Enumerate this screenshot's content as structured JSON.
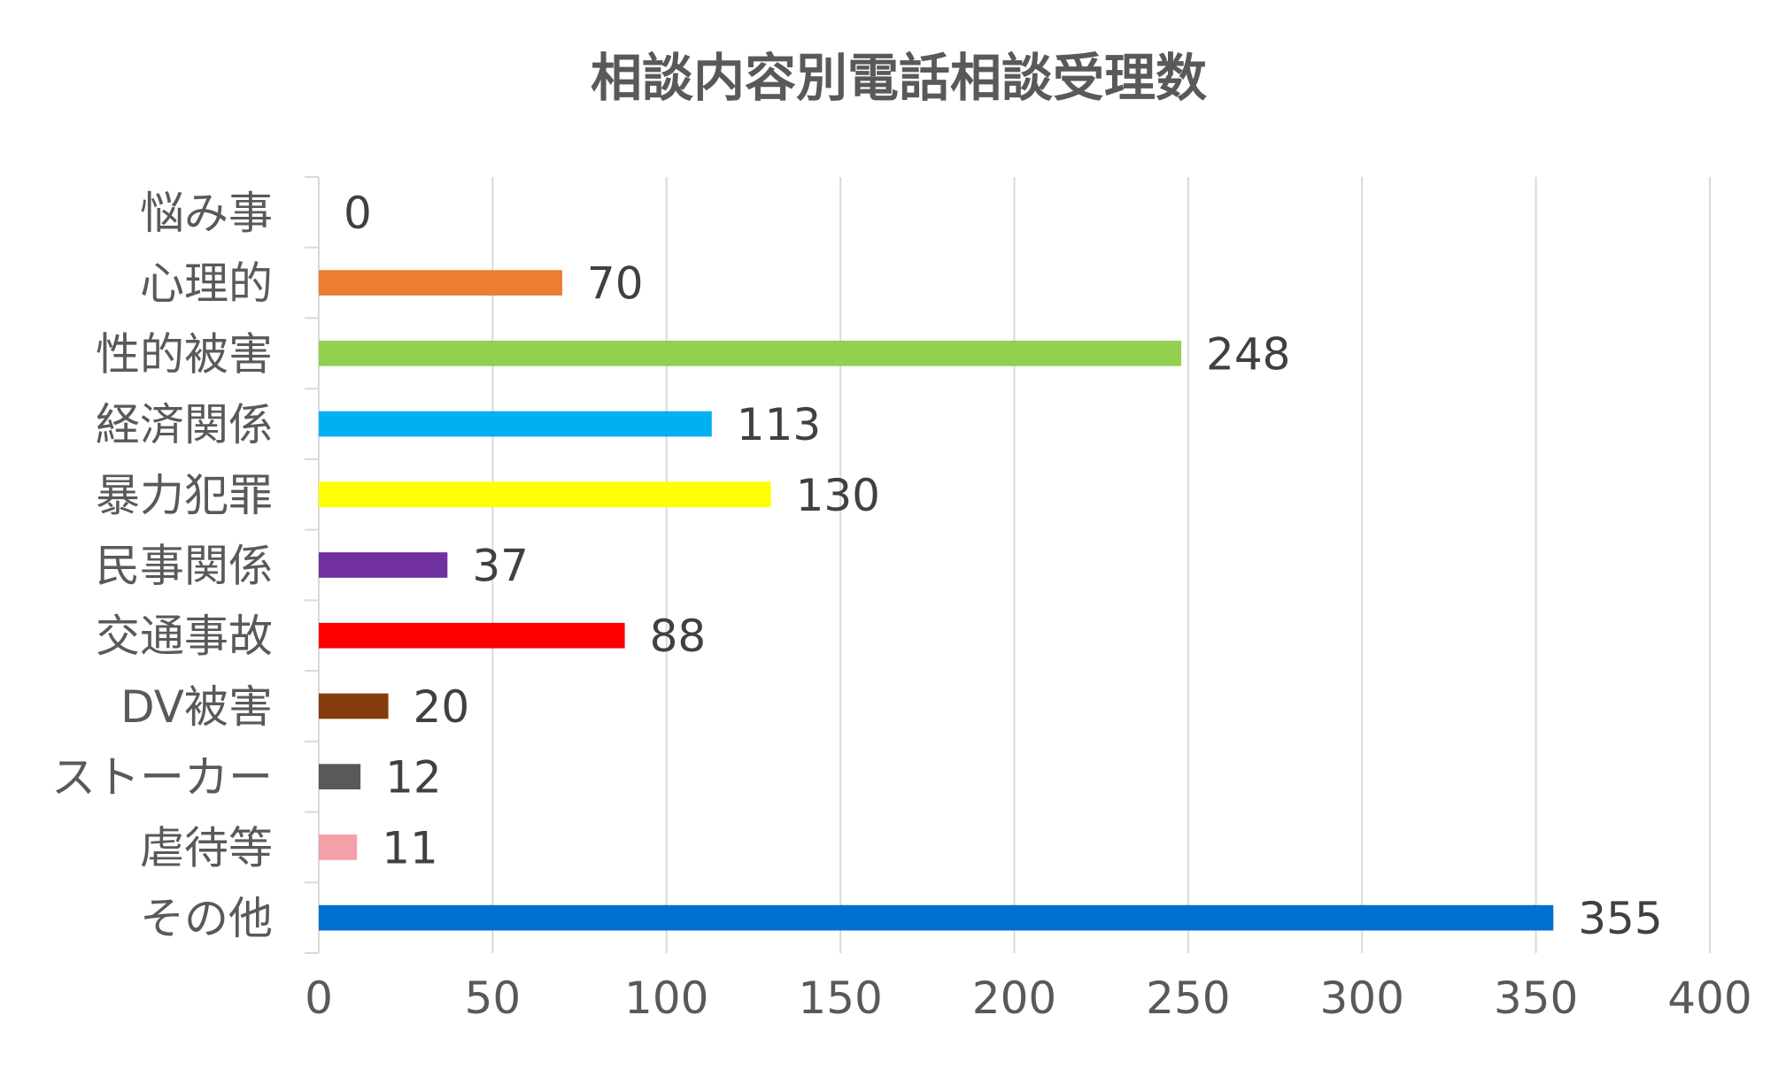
{
  "chart_data": {
    "type": "bar",
    "orientation": "horizontal",
    "title": "相談内容別電話相談受理数",
    "xlabel": "",
    "ylabel": "",
    "categories": [
      "悩み事",
      "心理的",
      "性的被害",
      "経済関係",
      "暴力犯罪",
      "民事関係",
      "交通事故",
      "DV被害",
      "ストーカー",
      "虐待等",
      "その他"
    ],
    "values": [
      0,
      70,
      248,
      113,
      130,
      37,
      88,
      20,
      12,
      11,
      355
    ],
    "colors": [
      "#4472C4",
      "#ED7D31",
      "#92D050",
      "#00B0F0",
      "#FFFF00",
      "#7030A0",
      "#FF0000",
      "#843C0C",
      "#595959",
      "#F4A0A8",
      "#0070D0"
    ],
    "xlim": [
      0,
      400
    ],
    "xticks": [
      0,
      50,
      100,
      150,
      200,
      250,
      300,
      350,
      400
    ],
    "grid": true,
    "legend": "none",
    "data_labels": true
  }
}
